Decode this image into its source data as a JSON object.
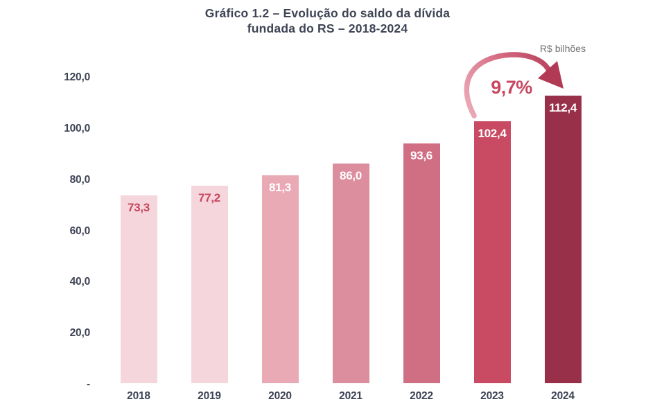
{
  "title": {
    "line1": "Gráfico 1.2 – Evolução do saldo da dívida",
    "line2": "fundada do RS – 2018-2024"
  },
  "unit_label": "R$ bilhões",
  "annotation": {
    "growth_label": "9,7%"
  },
  "colors": {
    "title_text": "#3f4455",
    "axis_text": "#3d4254",
    "unit_text": "#6f7073",
    "growth_text": "#c8465f",
    "arrow_start": "#edafbc",
    "arrow_end": "#b23a55",
    "background": "#ffffff"
  },
  "chart_data": {
    "type": "bar",
    "title": "Gráfico 1.2 – Evolução do saldo da dívida fundada do RS – 2018-2024",
    "xlabel": "",
    "ylabel": "R$ bilhões",
    "categories": [
      "2018",
      "2019",
      "2020",
      "2021",
      "2022",
      "2023",
      "2024"
    ],
    "values": [
      73.3,
      77.2,
      81.3,
      86.0,
      93.6,
      102.4,
      112.4
    ],
    "value_labels": [
      "73,3",
      "77,2",
      "81,3",
      "86,0",
      "93,6",
      "102,4",
      "112,4"
    ],
    "bar_colors": [
      "#f5d6dc",
      "#f5d6dc",
      "#e9aab6",
      "#dd8e9e",
      "#d06f83",
      "#c84a63",
      "#993049"
    ],
    "value_label_colors": [
      "#c8465f",
      "#c8465f",
      "#ffffff",
      "#ffffff",
      "#ffffff",
      "#ffffff",
      "#ffffff"
    ],
    "ylim": [
      0,
      120
    ],
    "ytick_values": [
      120,
      100,
      80,
      60,
      40,
      20,
      0
    ],
    "ytick_labels": [
      "120,0",
      "100,0",
      "80,0",
      "60,0",
      "40,0",
      "20,0",
      "-"
    ],
    "grid": false,
    "legend": "none",
    "growth_annotation_2023_2024": "9,7%"
  }
}
